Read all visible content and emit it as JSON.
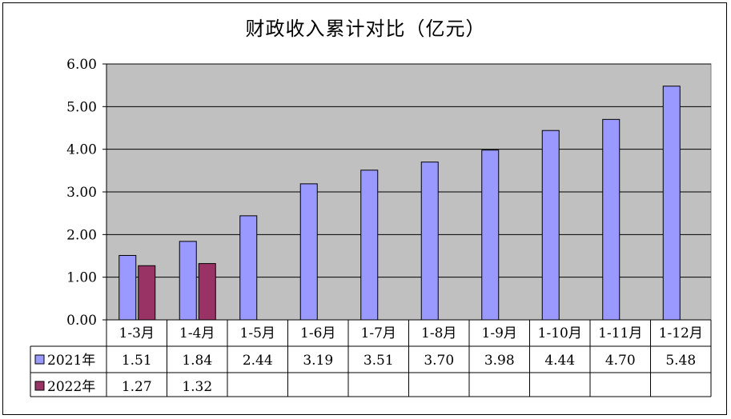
{
  "chart_data": {
    "type": "bar",
    "title": "财政收入累计对比（亿元）",
    "categories": [
      "1-3月",
      "1-4月",
      "1-5月",
      "1-6月",
      "1-7月",
      "1-8月",
      "1-9月",
      "1-10月",
      "1-11月",
      "1-12月"
    ],
    "y_ticks": [
      "0.00",
      "1.00",
      "2.00",
      "3.00",
      "4.00",
      "5.00",
      "6.00"
    ],
    "ylim": [
      0,
      6
    ],
    "grid": true,
    "legend": "data-table-left",
    "plot_background": "#c0c0c0",
    "series": [
      {
        "name": "2021年",
        "color": "#9999ff",
        "values": [
          1.51,
          1.84,
          2.44,
          3.19,
          3.51,
          3.7,
          3.98,
          4.44,
          4.7,
          5.48
        ],
        "labels": [
          "1.51",
          "1.84",
          "2.44",
          "3.19",
          "3.51",
          "3.70",
          "3.98",
          "4.44",
          "4.70",
          "5.48"
        ]
      },
      {
        "name": "2022年",
        "color": "#993366",
        "values": [
          1.27,
          1.32,
          null,
          null,
          null,
          null,
          null,
          null,
          null,
          null
        ],
        "labels": [
          "1.27",
          "1.32",
          "",
          "",
          "",
          "",
          "",
          "",
          "",
          ""
        ]
      }
    ]
  }
}
